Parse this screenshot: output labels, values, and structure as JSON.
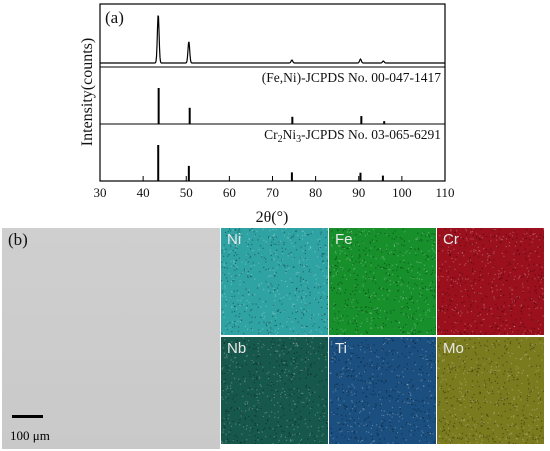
{
  "panel_a_label": "(a)",
  "panel_b_label": "(b)",
  "chart_data": {
    "type": "line",
    "xlabel": "2θ(°)",
    "ylabel": "Intensity(counts)",
    "xlim": [
      30,
      110
    ],
    "x_ticks": [
      "30",
      "40",
      "50",
      "60",
      "70",
      "80",
      "90",
      "100",
      "110"
    ],
    "series": [
      {
        "kind": "measured-pattern",
        "peaks": [
          {
            "x": 43.5,
            "y": 100
          },
          {
            "x": 50.6,
            "y": 44
          },
          {
            "x": 74.5,
            "y": 6
          },
          {
            "x": 90.4,
            "y": 8
          },
          {
            "x": 95.7,
            "y": 4
          }
        ]
      },
      {
        "name": "(Fe,Ni)-JCPDS No. 00-047-1417",
        "kind": "reference-sticks",
        "peaks": [
          {
            "x": 43.6,
            "y": 100
          },
          {
            "x": 50.8,
            "y": 45
          },
          {
            "x": 74.6,
            "y": 20
          },
          {
            "x": 90.6,
            "y": 22
          },
          {
            "x": 95.9,
            "y": 8
          }
        ]
      },
      {
        "name": "Cr2Ni3-JCPDS No. 03-065-6291",
        "name_parts": {
          "a": "Cr",
          "sub1": "2",
          "b": "Ni",
          "sub2": "3",
          "c": "-JCPDS No. 03-065-6291"
        },
        "kind": "reference-sticks",
        "peaks": [
          {
            "x": 43.5,
            "y": 100
          },
          {
            "x": 50.6,
            "y": 42
          },
          {
            "x": 74.5,
            "y": 24
          },
          {
            "x": 90.4,
            "y": 23
          },
          {
            "x": 95.6,
            "y": 15
          }
        ]
      }
    ]
  },
  "sem": {
    "scale_label": "100 μm"
  },
  "eds_maps": [
    {
      "element": "Ni",
      "color": "#2fa3a3"
    },
    {
      "element": "Fe",
      "color": "#17902c"
    },
    {
      "element": "Cr",
      "color": "#9a101c"
    },
    {
      "element": "Nb",
      "color": "#17584c"
    },
    {
      "element": "Ti",
      "color": "#1b4f7f"
    },
    {
      "element": "Mo",
      "color": "#7a7a1e"
    }
  ]
}
